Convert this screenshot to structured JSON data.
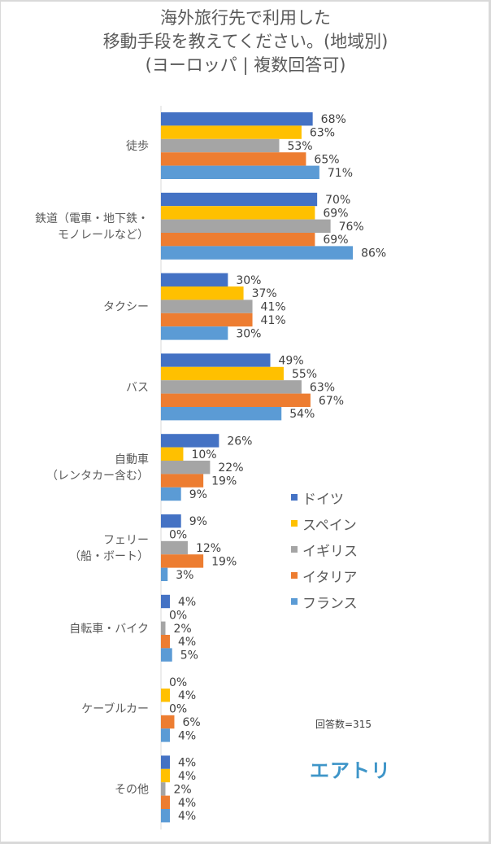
{
  "chart_data": {
    "type": "bar",
    "orientation": "horizontal",
    "title": [
      "海外旅行先で利用した",
      "移動手段を教えてください。(地域別)",
      "(ヨーロッパ | 複数回答可)"
    ],
    "categories": [
      [
        "徒歩"
      ],
      [
        "鉄道（電車・地下鉄・",
        "モノレールなど）"
      ],
      [
        "タクシー"
      ],
      [
        "バス"
      ],
      [
        "自動車",
        "（レンタカー含む）"
      ],
      [
        "フェリー",
        "（船・ボート）"
      ],
      [
        "自転車・バイク"
      ],
      [
        "ケーブルカー"
      ],
      [
        "その他"
      ]
    ],
    "series": [
      {
        "name": "ドイツ",
        "color": "#4472c4",
        "values": [
          68,
          70,
          30,
          49,
          26,
          9,
          4,
          0,
          4
        ]
      },
      {
        "name": "スペイン",
        "color": "#ffc000",
        "values": [
          63,
          69,
          37,
          55,
          10,
          0,
          0,
          4,
          4
        ]
      },
      {
        "name": "イギリス",
        "color": "#a5a5a5",
        "values": [
          53,
          76,
          41,
          63,
          22,
          12,
          2,
          0,
          2
        ]
      },
      {
        "name": "イタリア",
        "color": "#ed7d31",
        "values": [
          65,
          69,
          41,
          67,
          19,
          19,
          4,
          6,
          4
        ]
      },
      {
        "name": "フランス",
        "color": "#5b9bd5",
        "values": [
          71,
          86,
          30,
          54,
          9,
          3,
          5,
          4,
          4
        ]
      }
    ],
    "value_suffix": "%",
    "xlim": [
      0,
      100
    ],
    "grid": false,
    "legend_position": "right",
    "note": "回答数=315"
  },
  "brand": {
    "logo_text": "エアトリ"
  }
}
